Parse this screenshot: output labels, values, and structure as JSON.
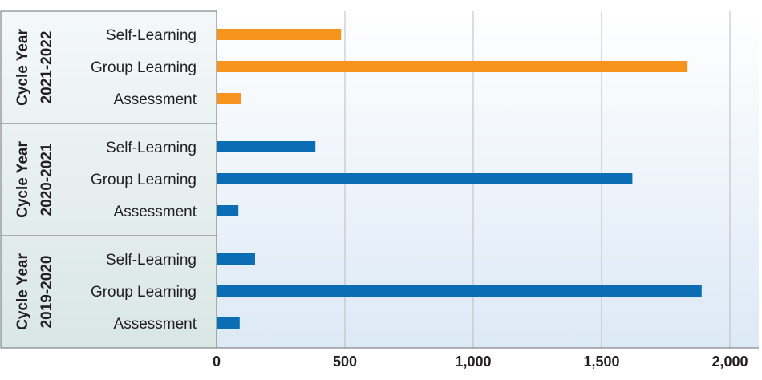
{
  "chart_data": {
    "type": "bar",
    "orientation": "horizontal",
    "groups": [
      {
        "label_line1": "Cycle Year",
        "label_line2": "2021-2022",
        "color": "#f7941d",
        "categories": [
          "Self-Learning",
          "Group Learning",
          "Assessment"
        ],
        "values": [
          485,
          1835,
          95
        ]
      },
      {
        "label_line1": "Cycle Year",
        "label_line2": "2020-2021",
        "color": "#0b6db3",
        "categories": [
          "Self-Learning",
          "Group Learning",
          "Assessment"
        ],
        "values": [
          385,
          1620,
          85
        ]
      },
      {
        "label_line1": "Cycle Year",
        "label_line2": "2019-2020",
        "color": "#0b6db3",
        "categories": [
          "Self-Learning",
          "Group Learning",
          "Assessment"
        ],
        "values": [
          150,
          1890,
          90
        ]
      }
    ],
    "xlim": [
      0,
      2000
    ],
    "xticks": [
      0,
      500,
      1000,
      1500,
      2000
    ],
    "xtick_labels": [
      "0",
      "500",
      "1,000",
      "1,500",
      "2,000"
    ],
    "grid": "vertical",
    "legend": "none"
  }
}
